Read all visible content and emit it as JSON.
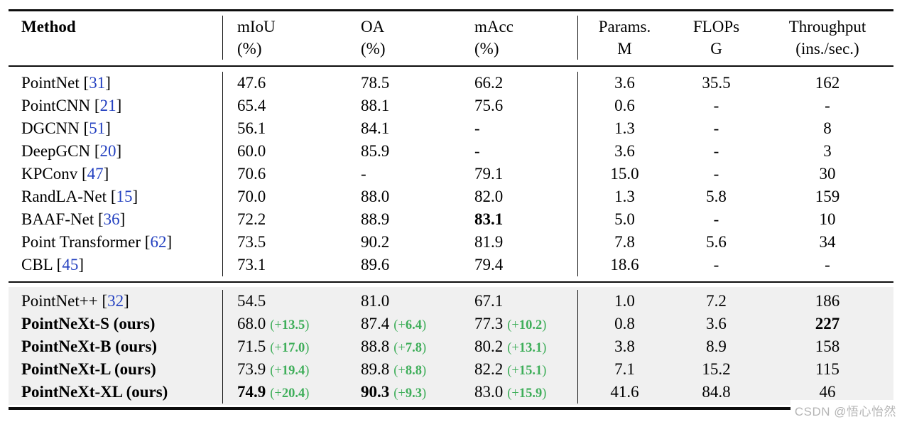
{
  "colors": {
    "green": "#3fae5a",
    "blue": "#2340c0",
    "section_bg": "#f0f0f0",
    "rule": "#0d0d0d",
    "watermark": "#b5b5b5"
  },
  "watermark": "CSDN @悟心怡然",
  "table": {
    "headers": [
      {
        "line1": "Method",
        "line2": ""
      },
      {
        "line1": "mIoU",
        "line2": "(%)"
      },
      {
        "line1": "OA",
        "line2": "(%)"
      },
      {
        "line1": "mAcc",
        "line2": "(%)"
      },
      {
        "line1": "Params.",
        "line2": "M"
      },
      {
        "line1": "FLOPs",
        "line2": "G"
      },
      {
        "line1": "Throughput",
        "line2": "(ins./sec.)"
      }
    ],
    "sections": [
      {
        "shaded": false,
        "rows": [
          {
            "method": "PointNet",
            "ref": "31",
            "bold": false,
            "cells": [
              {
                "v": "47.6"
              },
              {
                "v": "78.5"
              },
              {
                "v": "66.2"
              },
              {
                "v": "3.6"
              },
              {
                "v": "35.5"
              },
              {
                "v": "162"
              }
            ]
          },
          {
            "method": "PointCNN",
            "ref": "21",
            "bold": false,
            "cells": [
              {
                "v": "65.4"
              },
              {
                "v": "88.1"
              },
              {
                "v": "75.6"
              },
              {
                "v": "0.6"
              },
              {
                "v": "-"
              },
              {
                "v": "-"
              }
            ]
          },
          {
            "method": "DGCNN",
            "ref": "51",
            "bold": false,
            "cells": [
              {
                "v": "56.1"
              },
              {
                "v": "84.1"
              },
              {
                "v": "-"
              },
              {
                "v": "1.3"
              },
              {
                "v": "-"
              },
              {
                "v": "8"
              }
            ]
          },
          {
            "method": "DeepGCN",
            "ref": "20",
            "bold": false,
            "cells": [
              {
                "v": "60.0"
              },
              {
                "v": "85.9"
              },
              {
                "v": "-"
              },
              {
                "v": "3.6"
              },
              {
                "v": "-"
              },
              {
                "v": "3"
              }
            ]
          },
          {
            "method": "KPConv",
            "ref": "47",
            "bold": false,
            "cells": [
              {
                "v": "70.6"
              },
              {
                "v": "-"
              },
              {
                "v": "79.1"
              },
              {
                "v": "15.0"
              },
              {
                "v": "-"
              },
              {
                "v": "30"
              }
            ]
          },
          {
            "method": "RandLA-Net",
            "ref": "15",
            "bold": false,
            "cells": [
              {
                "v": "70.0"
              },
              {
                "v": "88.0"
              },
              {
                "v": "82.0"
              },
              {
                "v": "1.3"
              },
              {
                "v": "5.8"
              },
              {
                "v": "159"
              }
            ]
          },
          {
            "method": "BAAF-Net",
            "ref": "36",
            "bold": false,
            "cells": [
              {
                "v": "72.2"
              },
              {
                "v": "88.9"
              },
              {
                "v": "83.1",
                "bold": true
              },
              {
                "v": "5.0"
              },
              {
                "v": "-"
              },
              {
                "v": "10"
              }
            ]
          },
          {
            "method": "Point Transformer",
            "ref": "62",
            "bold": false,
            "cells": [
              {
                "v": "73.5"
              },
              {
                "v": "90.2"
              },
              {
                "v": "81.9"
              },
              {
                "v": "7.8"
              },
              {
                "v": "5.6"
              },
              {
                "v": "34"
              }
            ]
          },
          {
            "method": "CBL",
            "ref": "45",
            "bold": false,
            "cells": [
              {
                "v": "73.1"
              },
              {
                "v": "89.6"
              },
              {
                "v": "79.4"
              },
              {
                "v": "18.6"
              },
              {
                "v": "-"
              },
              {
                "v": "-"
              }
            ]
          }
        ]
      },
      {
        "shaded": true,
        "rows": [
          {
            "method": "PointNet++",
            "ref": "32",
            "bold": false,
            "cells": [
              {
                "v": "54.5"
              },
              {
                "v": "81.0"
              },
              {
                "v": "67.1"
              },
              {
                "v": "1.0"
              },
              {
                "v": "7.2"
              },
              {
                "v": "186"
              }
            ]
          },
          {
            "method": "PointNeXt-S (ours)",
            "ref": "",
            "bold": true,
            "cells": [
              {
                "v": "68.0",
                "delta": "13.5"
              },
              {
                "v": "87.4",
                "delta": "6.4"
              },
              {
                "v": "77.3",
                "delta": "10.2"
              },
              {
                "v": "0.8"
              },
              {
                "v": "3.6"
              },
              {
                "v": "227",
                "bold": true
              }
            ]
          },
          {
            "method": "PointNeXt-B (ours)",
            "ref": "",
            "bold": true,
            "cells": [
              {
                "v": "71.5",
                "delta": "17.0"
              },
              {
                "v": "88.8",
                "delta": "7.8"
              },
              {
                "v": "80.2",
                "delta": "13.1"
              },
              {
                "v": "3.8"
              },
              {
                "v": "8.9"
              },
              {
                "v": "158"
              }
            ]
          },
          {
            "method": "PointNeXt-L (ours)",
            "ref": "",
            "bold": true,
            "cells": [
              {
                "v": "73.9",
                "delta": "19.4"
              },
              {
                "v": "89.8",
                "delta": "8.8"
              },
              {
                "v": "82.2",
                "delta": "15.1"
              },
              {
                "v": "7.1"
              },
              {
                "v": "15.2"
              },
              {
                "v": "115"
              }
            ]
          },
          {
            "method": "PointNeXt-XL (ours)",
            "ref": "",
            "bold": true,
            "cells": [
              {
                "v": "74.9",
                "bold": true,
                "delta": "20.4"
              },
              {
                "v": "90.3",
                "bold": true,
                "delta": "9.3"
              },
              {
                "v": "83.0",
                "delta": "15.9"
              },
              {
                "v": "41.6"
              },
              {
                "v": "84.8"
              },
              {
                "v": "46"
              }
            ]
          }
        ]
      }
    ]
  }
}
